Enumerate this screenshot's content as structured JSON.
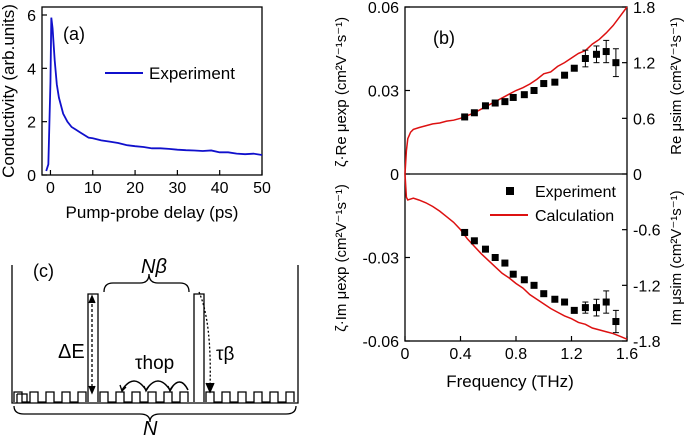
{
  "colors": {
    "experiment_a": "#1010cc",
    "calculation": "#dd1111",
    "marker": "#000000",
    "axis": "#000000"
  },
  "panel_a": {
    "label": "(a)",
    "legend": "Experiment",
    "xlabel": "Pump-probe delay (ps)",
    "ylabel": "Conductivity (arb.units)"
  },
  "panel_b": {
    "label": "(b)",
    "legend_experiment": "Experiment",
    "legend_calculation": "Calculation",
    "xlabel": "Frequency (THz)",
    "ylabel_left_top": "ζ·Re μexp (cm²V⁻¹s⁻¹)",
    "ylabel_left_bottom": "ζ·Im μexp (cm²V⁻¹s⁻¹)",
    "ylabel_right_top": "Re μsim (cm²V⁻¹s⁻¹)",
    "ylabel_right_bottom": "Im μsim (cm²V⁻¹s⁻¹)"
  },
  "panel_c": {
    "label": "(c)",
    "n_beta": "Nβ",
    "delta_e": "ΔE",
    "tau_hop": "τhop",
    "tau_beta": "τβ",
    "n": "N"
  },
  "chart_data": [
    {
      "id": "a",
      "type": "line",
      "title": "",
      "xlabel": "Pump-probe delay (ps)",
      "ylabel": "Conductivity (arb.units)",
      "xlim": [
        -2,
        50
      ],
      "ylim": [
        0,
        6.3
      ],
      "xticks": [
        0,
        10,
        20,
        30,
        40,
        50
      ],
      "yticks": [
        0,
        2,
        4,
        6
      ],
      "legend": "top-right",
      "series": [
        {
          "name": "Experiment",
          "x": [
            -1,
            -0.5,
            0,
            0.2,
            0.5,
            1,
            1.5,
            2,
            3,
            4,
            5,
            6,
            7,
            8,
            9,
            10,
            12,
            14,
            16,
            18,
            20,
            22,
            24,
            26,
            28,
            30,
            32,
            34,
            36,
            38,
            40,
            42,
            44,
            46,
            48,
            50
          ],
          "y": [
            0.15,
            0.4,
            3.5,
            5.9,
            5.5,
            4.3,
            3.4,
            2.9,
            2.3,
            2.0,
            1.8,
            1.7,
            1.6,
            1.5,
            1.4,
            1.38,
            1.3,
            1.25,
            1.2,
            1.12,
            1.08,
            1.05,
            1.0,
            1.0,
            0.98,
            0.95,
            0.93,
            0.92,
            0.9,
            0.92,
            0.85,
            0.85,
            0.8,
            0.78,
            0.8,
            0.75
          ]
        }
      ]
    },
    {
      "id": "b",
      "type": "line",
      "title": "",
      "xlabel": "Frequency (THz)",
      "ylabel_left": "ζ·Re μexp / ζ·Im μexp (cm²V⁻¹s⁻¹)",
      "ylabel_right": "Re μsim / Im μsim (cm²V⁻¹s⁻¹)",
      "xlim": [
        0,
        1.6
      ],
      "ylim_left": [
        -0.06,
        0.06
      ],
      "ylim_right": [
        -1.8,
        1.8
      ],
      "xticks": [
        0,
        0.4,
        0.8,
        1.2,
        1.6
      ],
      "xticklabels": [
        "0",
        "0.4",
        "0.8",
        "1.2",
        "1.6"
      ],
      "yticks_left": [
        -0.06,
        -0.03,
        0,
        0.03,
        0.06
      ],
      "yticklabels_left": [
        "-0.06",
        "-0.03",
        "0",
        "0.03",
        "0.06"
      ],
      "yticks_right": [
        -1.8,
        -1.2,
        -0.6,
        0,
        0.6,
        1.2,
        1.8
      ],
      "yticklabels_right": [
        "-1.8",
        "-1.2",
        "-0.6",
        "0",
        "0.6",
        "1.2",
        "1.8"
      ],
      "legend": "lower-right of top half",
      "series": [
        {
          "name": "Experiment",
          "kind": "scatter",
          "axis": "left",
          "x": [
            0.43,
            0.5,
            0.58,
            0.65,
            0.72,
            0.78,
            0.86,
            0.93,
            1.0,
            1.08,
            1.15,
            1.22,
            1.3,
            1.38,
            1.45,
            1.52
          ],
          "y_real": [
            0.0205,
            0.022,
            0.0245,
            0.0255,
            0.026,
            0.0275,
            0.0285,
            0.03,
            0.0325,
            0.033,
            0.0355,
            0.038,
            0.0415,
            0.043,
            0.044,
            0.04
          ],
          "y_imag": [
            -0.021,
            -0.024,
            -0.027,
            -0.03,
            -0.032,
            -0.036,
            -0.038,
            -0.04,
            -0.043,
            -0.045,
            -0.046,
            -0.049,
            -0.048,
            -0.048,
            -0.046,
            -0.053
          ],
          "err_real": [
            0,
            0,
            0,
            0,
            0,
            0,
            0,
            0,
            0,
            0,
            0,
            0,
            0.003,
            0.003,
            0.004,
            0.005
          ],
          "err_imag": [
            0,
            0,
            0,
            0,
            0,
            0,
            0,
            0,
            0,
            0,
            0,
            0,
            0.002,
            0.003,
            0.004,
            0.004
          ]
        },
        {
          "name": "Calculation",
          "kind": "line",
          "axis": "right",
          "x": [
            0.0,
            0.01,
            0.02,
            0.04,
            0.06,
            0.1,
            0.15,
            0.2,
            0.25,
            0.3,
            0.35,
            0.4,
            0.45,
            0.5,
            0.55,
            0.6,
            0.65,
            0.7,
            0.75,
            0.8,
            0.85,
            0.9,
            0.95,
            1.0,
            1.05,
            1.1,
            1.15,
            1.2,
            1.25,
            1.3,
            1.35,
            1.4,
            1.45,
            1.5,
            1.55,
            1.6
          ],
          "y_real": [
            0.0,
            0.25,
            0.38,
            0.45,
            0.48,
            0.5,
            0.52,
            0.54,
            0.55,
            0.57,
            0.58,
            0.6,
            0.63,
            0.66,
            0.7,
            0.74,
            0.78,
            0.82,
            0.86,
            0.9,
            0.93,
            0.97,
            1.02,
            1.08,
            1.1,
            1.16,
            1.2,
            1.25,
            1.3,
            1.33,
            1.4,
            1.45,
            1.52,
            1.6,
            1.7,
            1.8
          ],
          "y_imag": [
            0.0,
            -0.25,
            -0.28,
            -0.27,
            -0.26,
            -0.28,
            -0.31,
            -0.35,
            -0.4,
            -0.46,
            -0.52,
            -0.6,
            -0.7,
            -0.78,
            -0.86,
            -0.93,
            -1.0,
            -1.07,
            -1.12,
            -1.18,
            -1.23,
            -1.3,
            -1.35,
            -1.4,
            -1.45,
            -1.49,
            -1.53,
            -1.56,
            -1.6,
            -1.62,
            -1.66,
            -1.68,
            -1.7,
            -1.72,
            -1.75,
            -1.78
          ]
        }
      ]
    }
  ]
}
